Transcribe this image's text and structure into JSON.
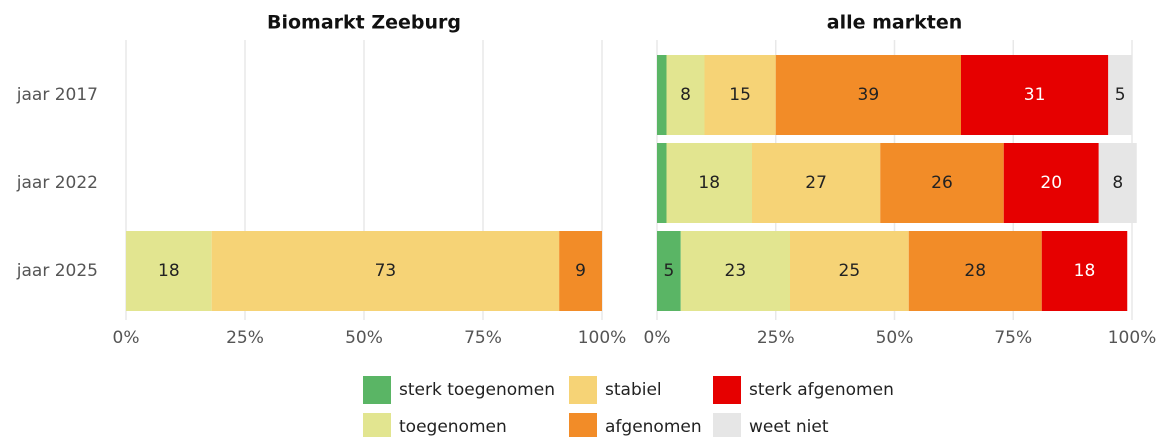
{
  "chart_data": {
    "type": "bar",
    "orientation": "horizontal",
    "stacked": true,
    "grid": true,
    "legend": "bottom",
    "categories": [
      "jaar 2017",
      "jaar 2022",
      "jaar 2025"
    ],
    "xlim": [
      0,
      100
    ],
    "xticks": [
      {
        "value": 0,
        "label": "0%"
      },
      {
        "value": 25,
        "label": "25%"
      },
      {
        "value": 50,
        "label": "50%"
      },
      {
        "value": 75,
        "label": "75%"
      },
      {
        "value": 100,
        "label": "100%"
      }
    ],
    "series": [
      {
        "name": "sterk toegenomen",
        "color": "#5ab565"
      },
      {
        "name": "toegenomen",
        "color": "#e2e590"
      },
      {
        "name": "stabiel",
        "color": "#f6d376"
      },
      {
        "name": "afgenomen",
        "color": "#f28c28"
      },
      {
        "name": "sterk afgenomen",
        "color": "#e60000",
        "label_color": "#ffffff"
      },
      {
        "name": "weet niet",
        "color": "#e6e6e6"
      }
    ],
    "panels": [
      {
        "title": "Biomarkt Zeeburg",
        "values": [
          [
            null,
            null,
            null
          ],
          [
            null,
            null,
            18
          ],
          [
            null,
            null,
            73
          ],
          [
            null,
            null,
            9
          ],
          [
            null,
            null,
            null
          ],
          [
            null,
            null,
            null
          ]
        ]
      },
      {
        "title": "alle markten",
        "values": [
          [
            2,
            2,
            5
          ],
          [
            8,
            18,
            23
          ],
          [
            15,
            27,
            25
          ],
          [
            39,
            26,
            28
          ],
          [
            31,
            20,
            18
          ],
          [
            5,
            8,
            null
          ]
        ]
      }
    ]
  }
}
